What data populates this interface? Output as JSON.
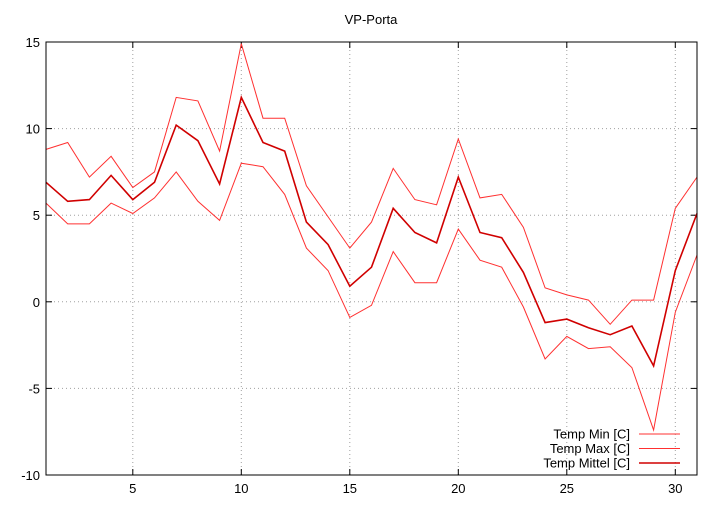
{
  "chart_data": {
    "type": "line",
    "title": "VP-Porta",
    "xlabel": "",
    "ylabel": "",
    "xlim": [
      1,
      31
    ],
    "ylim": [
      -10,
      15
    ],
    "xticks": [
      5,
      10,
      15,
      20,
      25,
      30
    ],
    "yticks": [
      -10,
      -5,
      0,
      5,
      10,
      15
    ],
    "grid": true,
    "legend_position": "bottom-right",
    "x": [
      1,
      2,
      3,
      4,
      5,
      6,
      7,
      8,
      9,
      10,
      11,
      12,
      13,
      14,
      15,
      16,
      17,
      18,
      19,
      20,
      21,
      22,
      23,
      24,
      25,
      26,
      27,
      28,
      29,
      30,
      31
    ],
    "series": [
      {
        "name": "Temp Min [C]",
        "color": "#ff3030",
        "values": [
          5.7,
          4.5,
          4.5,
          5.7,
          5.1,
          6.0,
          7.5,
          5.8,
          4.7,
          8.0,
          7.8,
          6.2,
          3.1,
          1.8,
          -0.9,
          -0.2,
          2.9,
          1.1,
          1.1,
          4.2,
          2.4,
          2.0,
          -0.3,
          -3.3,
          -2.0,
          -2.7,
          -2.6,
          -3.8,
          -7.4,
          -0.6,
          2.7
        ]
      },
      {
        "name": "Temp Max [C]",
        "color": "#ff3030",
        "values": [
          8.8,
          9.2,
          7.2,
          8.4,
          6.6,
          7.5,
          11.8,
          11.6,
          8.7,
          14.9,
          10.6,
          10.6,
          6.7,
          4.9,
          3.1,
          4.6,
          7.7,
          5.9,
          5.6,
          9.4,
          6.0,
          6.2,
          4.3,
          0.8,
          0.4,
          0.1,
          -1.3,
          0.1,
          0.1,
          5.4,
          7.2
        ]
      },
      {
        "name": "Temp Mittel [C]",
        "color": "#d00000",
        "values": [
          6.9,
          5.8,
          5.9,
          7.3,
          5.9,
          6.9,
          10.2,
          9.3,
          6.8,
          11.8,
          9.2,
          8.7,
          4.6,
          3.3,
          0.9,
          2.0,
          5.4,
          4.0,
          3.4,
          7.2,
          4.0,
          3.7,
          1.7,
          -1.2,
          -1.0,
          -1.5,
          -1.9,
          -1.4,
          -3.7,
          1.8,
          5.1
        ]
      }
    ]
  }
}
